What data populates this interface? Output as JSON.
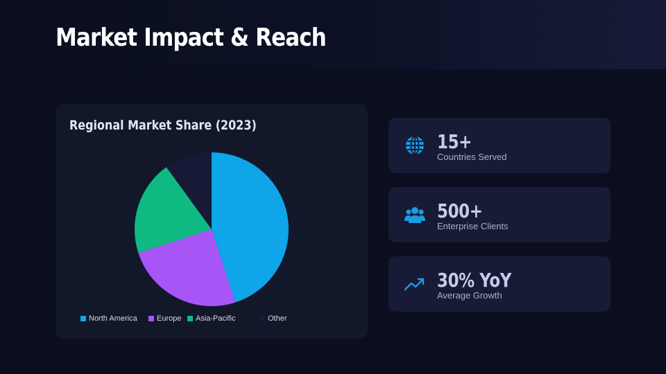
{
  "page": {
    "title": "Market Impact & Reach"
  },
  "chart_data": {
    "type": "pie",
    "title": "Regional Market Share (2023)",
    "categories": [
      "North America",
      "Europe",
      "Asia-Pacific",
      "Other"
    ],
    "values": [
      45,
      25,
      20,
      10
    ],
    "colors": [
      "#0ea5e9",
      "#a855f7",
      "#10b981",
      "#161a36"
    ],
    "legend_position": "bottom"
  },
  "stats": [
    {
      "value": "15+",
      "label": "Countries Served",
      "icon": "globe-icon"
    },
    {
      "value": "500+",
      "label": "Enterprise Clients",
      "icon": "users-icon"
    },
    {
      "value": "30% YoY",
      "label": "Average Growth",
      "icon": "trending-up-icon"
    }
  ],
  "theme": {
    "accent": "#0ea5e9",
    "background": "#0a0e1f",
    "card": "#121729"
  }
}
